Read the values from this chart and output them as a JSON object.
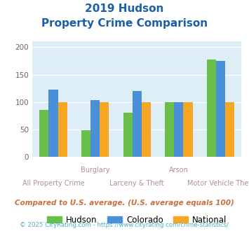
{
  "title_line1": "2019 Hudson",
  "title_line2": "Property Crime Comparison",
  "hudson": [
    86,
    49,
    81,
    100,
    177
  ],
  "colorado": [
    123,
    103,
    120,
    100,
    175
  ],
  "national": [
    100,
    100,
    100,
    100,
    100
  ],
  "hudson_color": "#6abf4b",
  "colorado_color": "#4a90d9",
  "national_color": "#f5a623",
  "bg_color": "#ddeef6",
  "title_color": "#1a5fa8",
  "ylim": [
    0,
    210
  ],
  "yticks": [
    0,
    50,
    100,
    150,
    200
  ],
  "top_labels": [
    "",
    "Burglary",
    "",
    "Arson",
    ""
  ],
  "bottom_labels": [
    "All Property Crime",
    "",
    "Larceny & Theft",
    "",
    "Motor Vehicle Theft"
  ],
  "label_color": "#b09090",
  "footnote1": "Compared to U.S. average. (U.S. average equals 100)",
  "footnote2": "© 2025 CityRating.com - https://www.cityrating.com/crime-statistics/",
  "footnote1_color": "#c87040",
  "footnote2_color": "#4ab0c0"
}
